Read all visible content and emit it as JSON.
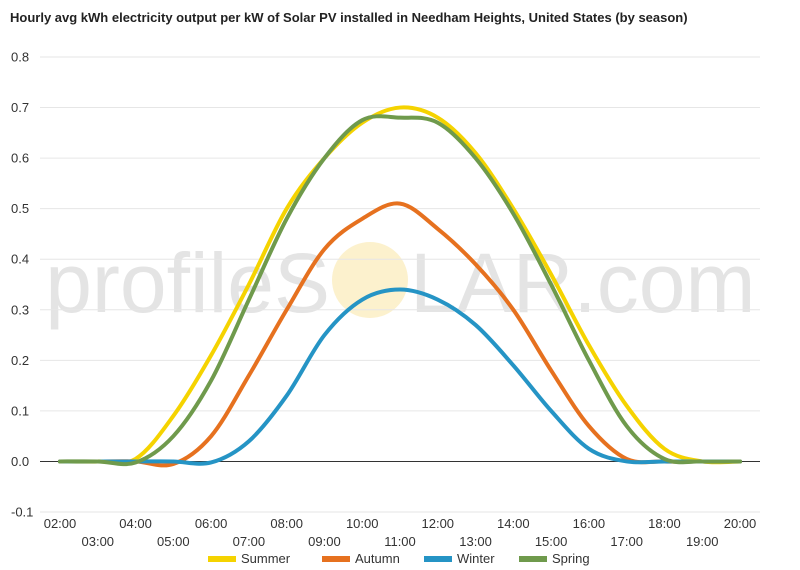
{
  "chart_data": {
    "type": "line",
    "title": "Hourly avg kWh electricity output per kW of Solar PV installed in Needham Heights, United States (by season)",
    "xlabel": "",
    "ylabel": "",
    "ylim": [
      -0.1,
      0.8
    ],
    "yticks": [
      "-0.1",
      "0.0",
      "0.1",
      "0.2",
      "0.3",
      "0.4",
      "0.5",
      "0.6",
      "0.7",
      "0.8"
    ],
    "x": [
      "02:00",
      "03:00",
      "04:00",
      "05:00",
      "06:00",
      "07:00",
      "08:00",
      "09:00",
      "10:00",
      "11:00",
      "12:00",
      "13:00",
      "14:00",
      "15:00",
      "16:00",
      "17:00",
      "18:00",
      "19:00",
      "20:00"
    ],
    "grid": true,
    "legend_position": "bottom",
    "series": [
      {
        "name": "Summer",
        "color": "#f5d300",
        "values": [
          0.0,
          0.0,
          0.005,
          0.09,
          0.21,
          0.35,
          0.5,
          0.6,
          0.67,
          0.7,
          0.68,
          0.61,
          0.5,
          0.37,
          0.23,
          0.11,
          0.025,
          0.0,
          0.0
        ]
      },
      {
        "name": "Autumn",
        "color": "#e6711f",
        "values": [
          0.0,
          0.0,
          0.0,
          -0.005,
          0.05,
          0.17,
          0.3,
          0.42,
          0.48,
          0.51,
          0.46,
          0.39,
          0.3,
          0.18,
          0.07,
          0.005,
          0.0,
          0.0,
          0.0
        ]
      },
      {
        "name": "Winter",
        "color": "#2594c5",
        "values": [
          0.0,
          0.0,
          0.0,
          0.0,
          -0.002,
          0.04,
          0.13,
          0.25,
          0.32,
          0.34,
          0.32,
          0.27,
          0.19,
          0.1,
          0.025,
          0.0,
          0.0,
          0.0,
          0.0
        ]
      },
      {
        "name": "Spring",
        "color": "#6f9a4c",
        "values": [
          0.0,
          0.0,
          -0.002,
          0.05,
          0.16,
          0.32,
          0.48,
          0.6,
          0.675,
          0.68,
          0.67,
          0.6,
          0.49,
          0.35,
          0.2,
          0.07,
          0.005,
          0.0,
          0.0
        ]
      }
    ]
  },
  "watermark": {
    "text_left": "profileS",
    "text_right": "LAR.com"
  }
}
